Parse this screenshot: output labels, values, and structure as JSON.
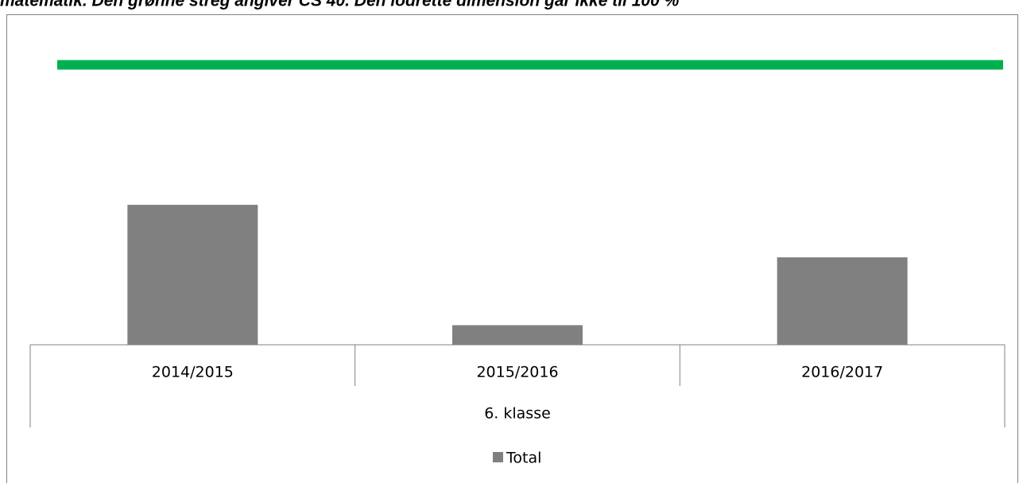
{
  "chart_data": {
    "type": "bar",
    "title": "matematik. Den grønne streg angiver CS 40. Den lodrette dimension går ikke til 100 %",
    "categories": [
      "2014/2015",
      "2015/2016",
      "2016/2017"
    ],
    "group_label": "6. klasse",
    "series": [
      {
        "name": "Total",
        "color": "#808080",
        "values": [
          20,
          2.8,
          12.5
        ]
      }
    ],
    "reference_line": {
      "value": 40,
      "color": "#00b050"
    },
    "ylim": [
      0,
      42
    ]
  }
}
